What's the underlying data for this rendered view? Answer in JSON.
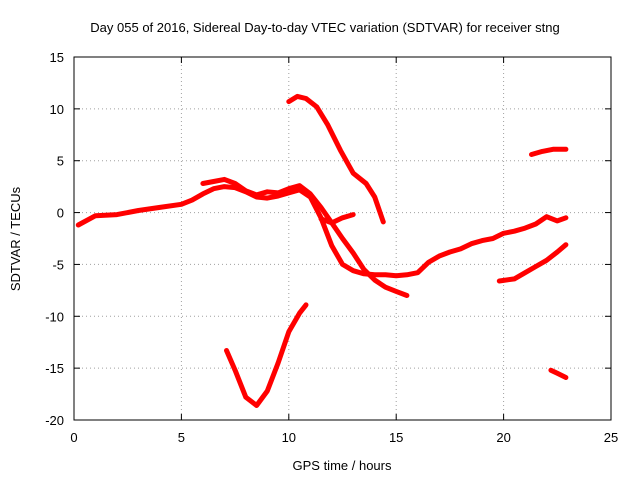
{
  "chart_data": {
    "type": "line",
    "title": "Day 055 of 2016, Sidereal Day-to-day VTEC variation (SDTVAR) for receiver stng",
    "xlabel": "GPS time / hours",
    "ylabel": "SDTVAR / TECUs",
    "xlim": [
      0,
      25
    ],
    "ylim": [
      -20,
      15
    ],
    "xticks": [
      "0",
      "5",
      "10",
      "15",
      "20",
      "25"
    ],
    "yticks": [
      "-20",
      "-15",
      "-10",
      "-5",
      "0",
      "5",
      "10",
      "15"
    ],
    "grid": true,
    "color": "#ff0000",
    "series": [
      {
        "name": "arc-main-low",
        "x": [
          0.2,
          1,
          2,
          3,
          4,
          5,
          5.5,
          6,
          6.5,
          7,
          7.5,
          8,
          8.5,
          9,
          9.5,
          10,
          10.5,
          11,
          11.5,
          12,
          12.5,
          13,
          13.5,
          14,
          14.5,
          15,
          15.5,
          16,
          16.5,
          17,
          17.5,
          18,
          18.5,
          19,
          19.5,
          20,
          20.5,
          21,
          21.5,
          22,
          22.5,
          22.9
        ],
        "y": [
          -1.2,
          -0.3,
          -0.2,
          0.2,
          0.5,
          0.8,
          1.2,
          1.8,
          2.3,
          2.5,
          2.4,
          2.0,
          1.5,
          1.4,
          1.6,
          1.9,
          2.2,
          1.5,
          -0.5,
          -3.2,
          -5.0,
          -5.6,
          -5.9,
          -6.0,
          -6.0,
          -6.1,
          -6.0,
          -5.8,
          -4.8,
          -4.2,
          -3.8,
          -3.5,
          -3.0,
          -2.7,
          -2.5,
          -2.0,
          -1.8,
          -1.5,
          -1.1,
          -0.4,
          -0.8,
          -0.5
        ]
      },
      {
        "name": "arc-main-high",
        "x": [
          6,
          6.5,
          7,
          7.5,
          8,
          8.5,
          9,
          9.5,
          10,
          10.5,
          11,
          11.5,
          12,
          12.5,
          13,
          13.5,
          14,
          14.5,
          15,
          15.5
        ],
        "y": [
          2.8,
          3.0,
          3.2,
          2.8,
          2.1,
          1.7,
          2.0,
          1.9,
          2.3,
          2.6,
          1.8,
          0.5,
          -1.0,
          -2.5,
          -3.9,
          -5.5,
          -6.5,
          -7.2,
          -7.6,
          -8.0
        ]
      },
      {
        "name": "arc-12-14",
        "x": [
          11.5,
          12,
          12.5,
          13
        ],
        "y": [
          -0.6,
          -1.0,
          -0.5,
          -0.2
        ]
      },
      {
        "name": "arc-10-14",
        "x": [
          10.0,
          10.4,
          10.8,
          11.3,
          11.8,
          12.4,
          13.0,
          13.6,
          14.0,
          14.4
        ],
        "y": [
          10.7,
          11.2,
          11.0,
          10.2,
          8.5,
          6.0,
          3.8,
          2.8,
          1.5,
          -0.9
        ]
      },
      {
        "name": "arc-7-11",
        "x": [
          7.1,
          7.5,
          8.0,
          8.5,
          9.0,
          9.5,
          10.0,
          10.5,
          10.8
        ],
        "y": [
          -13.3,
          -15.2,
          -17.8,
          -18.6,
          -17.2,
          -14.5,
          -11.5,
          -9.7,
          -8.9
        ]
      },
      {
        "name": "arc-19-23",
        "x": [
          19.8,
          20.5,
          21.0,
          21.5,
          22.0,
          22.5,
          22.9
        ],
        "y": [
          -6.6,
          -6.4,
          -5.8,
          -5.2,
          -4.6,
          -3.8,
          -3.1
        ]
      },
      {
        "name": "arc-21-23",
        "x": [
          21.3,
          21.8,
          22.3,
          22.9
        ],
        "y": [
          5.6,
          5.9,
          6.1,
          6.1
        ]
      },
      {
        "name": "arc-22-23",
        "x": [
          22.2,
          22.5,
          22.9
        ],
        "y": [
          -15.2,
          -15.5,
          -15.9
        ]
      }
    ]
  }
}
